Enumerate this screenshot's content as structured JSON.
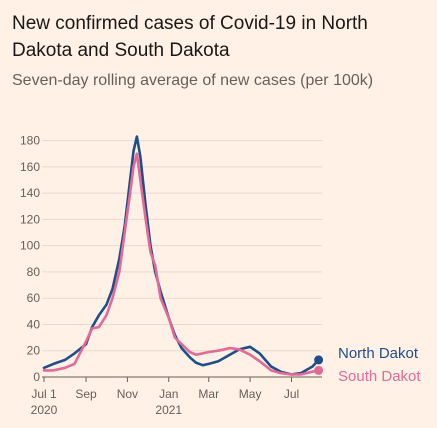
{
  "header": {
    "title": "New confirmed cases of Covid-19 in North Dakota and South Dakota",
    "subtitle": "Seven-day rolling average of new cases (per 100k)"
  },
  "chart_data": {
    "type": "line",
    "title": "New confirmed cases of Covid-19 in North Dakota and South Dakota",
    "subtitle": "Seven-day rolling average of new cases (per 100k)",
    "xlabel": "",
    "ylabel": "",
    "ylim": [
      0,
      185
    ],
    "yticks": [
      0,
      20,
      40,
      60,
      80,
      100,
      120,
      140,
      160,
      180
    ],
    "xlim": [
      "2020-07-01",
      "2021-08-15"
    ],
    "xticks": [
      {
        "date": "2020-07-01",
        "label": "Jul 1",
        "sublabel": "2020"
      },
      {
        "date": "2020-09-01",
        "label": "Sep",
        "sublabel": ""
      },
      {
        "date": "2020-11-01",
        "label": "Nov",
        "sublabel": ""
      },
      {
        "date": "2021-01-01",
        "label": "Jan",
        "sublabel": "2021"
      },
      {
        "date": "2021-03-01",
        "label": "Mar",
        "sublabel": ""
      },
      {
        "date": "2021-05-01",
        "label": "May",
        "sublabel": ""
      },
      {
        "date": "2021-07-01",
        "label": "Jul",
        "sublabel": ""
      }
    ],
    "grid": "horizontal",
    "legend": "right, at line ends",
    "series": [
      {
        "name": "North Dakot",
        "color": "#1f4e89",
        "points": [
          [
            "2020-07-01",
            7
          ],
          [
            "2020-07-15",
            10
          ],
          [
            "2020-08-01",
            13
          ],
          [
            "2020-08-15",
            18
          ],
          [
            "2020-09-01",
            25
          ],
          [
            "2020-09-10",
            38
          ],
          [
            "2020-09-20",
            47
          ],
          [
            "2020-10-01",
            55
          ],
          [
            "2020-10-10",
            67
          ],
          [
            "2020-10-20",
            90
          ],
          [
            "2020-10-28",
            115
          ],
          [
            "2020-11-05",
            150
          ],
          [
            "2020-11-10",
            172
          ],
          [
            "2020-11-15",
            183
          ],
          [
            "2020-11-20",
            168
          ],
          [
            "2020-11-28",
            130
          ],
          [
            "2020-12-05",
            100
          ],
          [
            "2020-12-12",
            80
          ],
          [
            "2020-12-20",
            65
          ],
          [
            "2021-01-01",
            45
          ],
          [
            "2021-01-10",
            32
          ],
          [
            "2021-01-20",
            22
          ],
          [
            "2021-02-01",
            15
          ],
          [
            "2021-02-10",
            11
          ],
          [
            "2021-02-20",
            9
          ],
          [
            "2021-03-01",
            10
          ],
          [
            "2021-03-15",
            12
          ],
          [
            "2021-04-01",
            17
          ],
          [
            "2021-04-15",
            21
          ],
          [
            "2021-05-01",
            23
          ],
          [
            "2021-05-15",
            18
          ],
          [
            "2021-06-01",
            8
          ],
          [
            "2021-06-15",
            4
          ],
          [
            "2021-07-01",
            2
          ],
          [
            "2021-07-15",
            3
          ],
          [
            "2021-08-01",
            8
          ],
          [
            "2021-08-10",
            13
          ]
        ]
      },
      {
        "name": "South Dakot",
        "color": "#e36996",
        "points": [
          [
            "2020-07-01",
            5
          ],
          [
            "2020-07-15",
            5
          ],
          [
            "2020-08-01",
            7
          ],
          [
            "2020-08-15",
            10
          ],
          [
            "2020-09-01",
            27
          ],
          [
            "2020-09-10",
            37
          ],
          [
            "2020-09-20",
            38
          ],
          [
            "2020-10-01",
            47
          ],
          [
            "2020-10-10",
            60
          ],
          [
            "2020-10-20",
            80
          ],
          [
            "2020-10-28",
            110
          ],
          [
            "2020-11-05",
            140
          ],
          [
            "2020-11-10",
            160
          ],
          [
            "2020-11-15",
            170
          ],
          [
            "2020-11-20",
            150
          ],
          [
            "2020-11-28",
            120
          ],
          [
            "2020-12-05",
            95
          ],
          [
            "2020-12-12",
            85
          ],
          [
            "2020-12-20",
            60
          ],
          [
            "2021-01-01",
            45
          ],
          [
            "2021-01-10",
            30
          ],
          [
            "2021-01-20",
            25
          ],
          [
            "2021-02-01",
            19
          ],
          [
            "2021-02-10",
            17
          ],
          [
            "2021-02-20",
            18
          ],
          [
            "2021-03-01",
            19
          ],
          [
            "2021-03-15",
            20
          ],
          [
            "2021-04-01",
            22
          ],
          [
            "2021-04-15",
            21
          ],
          [
            "2021-05-01",
            17
          ],
          [
            "2021-05-15",
            12
          ],
          [
            "2021-06-01",
            5
          ],
          [
            "2021-06-15",
            3
          ],
          [
            "2021-07-01",
            2
          ],
          [
            "2021-07-15",
            2
          ],
          [
            "2021-08-01",
            4
          ],
          [
            "2021-08-10",
            5
          ]
        ]
      }
    ]
  }
}
